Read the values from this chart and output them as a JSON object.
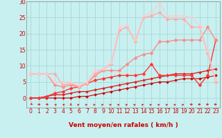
{
  "bg_color": "#c8f0f0",
  "grid_color": "#a8d8d8",
  "xlabel": "Vent moyen/en rafales ( km/h )",
  "xlim": [
    -0.5,
    23.5
  ],
  "ylim": [
    -3,
    30
  ],
  "xticks": [
    0,
    1,
    2,
    3,
    4,
    5,
    6,
    7,
    8,
    9,
    10,
    11,
    12,
    13,
    14,
    15,
    16,
    17,
    18,
    19,
    20,
    21,
    22,
    23
  ],
  "yticks": [
    0,
    5,
    10,
    15,
    20,
    25,
    30
  ],
  "series": [
    {
      "x": [
        0,
        1,
        2,
        3,
        4,
        5,
        6,
        7,
        8,
        9,
        10,
        11,
        12,
        13,
        14,
        15,
        16,
        17,
        18,
        19,
        20,
        21,
        22,
        23
      ],
      "y": [
        0,
        0,
        0,
        0,
        0,
        0,
        0.5,
        0.5,
        1,
        1.5,
        2,
        2.5,
        3,
        3.5,
        4,
        4.5,
        5,
        5,
        5.5,
        6,
        6,
        6,
        6.5,
        7
      ],
      "color": "#cc0000",
      "linewidth": 0.8,
      "marker": "D",
      "markersize": 2.0,
      "linestyle": "-",
      "alpha": 1.0
    },
    {
      "x": [
        0,
        1,
        2,
        3,
        4,
        5,
        6,
        7,
        8,
        9,
        10,
        11,
        12,
        13,
        14,
        15,
        16,
        17,
        18,
        19,
        20,
        21,
        22,
        23
      ],
      "y": [
        0,
        0,
        0.5,
        1,
        1,
        1.5,
        2,
        2,
        2.5,
        3,
        3.5,
        4,
        4.5,
        5,
        5.5,
        6,
        6.5,
        7,
        7.5,
        7.5,
        7.5,
        8,
        8.5,
        9
      ],
      "color": "#dd2222",
      "linewidth": 1.0,
      "marker": "D",
      "markersize": 2.0,
      "linestyle": "-",
      "alpha": 1.0
    },
    {
      "x": [
        0,
        1,
        2,
        3,
        4,
        5,
        6,
        7,
        8,
        9,
        10,
        11,
        12,
        13,
        14,
        15,
        16,
        17,
        18,
        19,
        20,
        21,
        22,
        23
      ],
      "y": [
        0,
        0,
        0.5,
        1.5,
        2,
        3,
        3.5,
        4.5,
        5.5,
        6,
        6.5,
        7,
        7,
        7,
        7.5,
        10.5,
        7,
        7,
        7,
        7,
        7,
        4,
        7,
        18
      ],
      "color": "#ff3333",
      "linewidth": 1.0,
      "marker": "D",
      "markersize": 2.5,
      "linestyle": "-",
      "alpha": 1.0
    },
    {
      "x": [
        0,
        1,
        2,
        3,
        4,
        5,
        6,
        7,
        8,
        9,
        10,
        11,
        12,
        13,
        14,
        15,
        16,
        17,
        18,
        19,
        20,
        21,
        22,
        23
      ],
      "y": [
        7.5,
        7.5,
        7.5,
        4,
        3.5,
        4,
        3.5,
        4.5,
        7,
        8.5,
        8.5,
        8.5,
        10.5,
        12.5,
        13.5,
        14,
        17.5,
        17.5,
        18,
        18,
        18,
        18,
        22,
        18
      ],
      "color": "#ff8888",
      "linewidth": 1.0,
      "marker": "D",
      "markersize": 2.5,
      "linestyle": "-",
      "alpha": 1.0
    },
    {
      "x": [
        0,
        1,
        2,
        3,
        4,
        5,
        6,
        7,
        8,
        9,
        10,
        11,
        12,
        13,
        14,
        15,
        16,
        17,
        18,
        19,
        20,
        21,
        22,
        23
      ],
      "y": [
        7.5,
        7.5,
        7.5,
        7.5,
        4,
        4.5,
        3.5,
        4.5,
        7.5,
        9,
        10.5,
        21,
        22,
        17.5,
        25,
        25.5,
        26.5,
        24.5,
        24.5,
        24.5,
        22,
        22,
        14,
        5
      ],
      "color": "#ffaaaa",
      "linewidth": 1.0,
      "marker": "D",
      "markersize": 2.5,
      "linestyle": "-",
      "alpha": 1.0
    },
    {
      "x": [
        0,
        1,
        2,
        3,
        4,
        5,
        6,
        7,
        8,
        9,
        10,
        11,
        12,
        13,
        14,
        15,
        16,
        17,
        18,
        19,
        20,
        21,
        22,
        23
      ],
      "y": [
        7.5,
        7.5,
        7.5,
        5,
        5,
        5,
        4,
        5,
        8.5,
        9,
        11,
        22,
        22.5,
        18,
        25.5,
        26.5,
        29.5,
        25.5,
        25.5,
        25.5,
        25,
        22.5,
        14.5,
        5.5
      ],
      "color": "#ffcccc",
      "linewidth": 1.0,
      "marker": "D",
      "markersize": 2.5,
      "linestyle": "-",
      "alpha": 0.85
    }
  ],
  "wind_dirs_deg": [
    225,
    270,
    270,
    315,
    315,
    0,
    45,
    45,
    45,
    45,
    45,
    45,
    45,
    45,
    45,
    45,
    45,
    45,
    45,
    45,
    90,
    90,
    90,
    90
  ],
  "label_fontsize": 6.5,
  "tick_fontsize": 5.5
}
